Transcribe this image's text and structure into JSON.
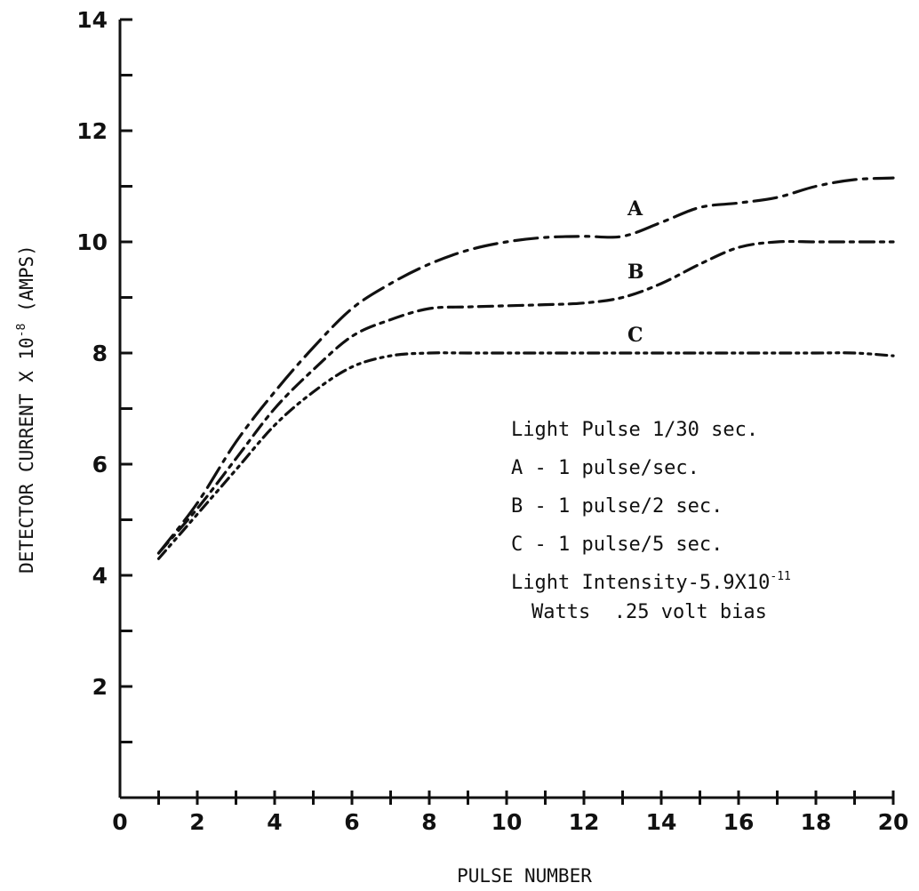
{
  "chart_data": {
    "type": "line",
    "title": "",
    "xlabel": "PULSE NUMBER",
    "ylabel": {
      "prefix": "DETECTOR CURRENT X 10",
      "exponent": "-8",
      "suffix": " (AMPS)"
    },
    "xlim": [
      0,
      20
    ],
    "ylim": [
      0,
      14
    ],
    "x_ticks": [
      "0",
      "2",
      "4",
      "6",
      "8",
      "10",
      "12",
      "14",
      "16",
      "18",
      "20"
    ],
    "y_ticks": [
      "2",
      "4",
      "6",
      "8",
      "10",
      "12",
      "14"
    ],
    "grid": false,
    "series": [
      {
        "name": "A",
        "x": [
          1,
          2,
          3,
          4,
          5,
          6,
          7,
          8,
          9,
          10,
          11,
          12,
          13,
          14,
          15,
          16,
          17,
          18,
          19,
          20
        ],
        "values": [
          4.4,
          5.3,
          6.4,
          7.3,
          8.1,
          8.8,
          9.25,
          9.6,
          9.85,
          10.0,
          10.08,
          10.1,
          10.1,
          10.35,
          10.62,
          10.7,
          10.8,
          11.0,
          11.12,
          11.15
        ]
      },
      {
        "name": "B",
        "x": [
          1,
          2,
          3,
          4,
          5,
          6,
          7,
          8,
          9,
          10,
          11,
          12,
          13,
          14,
          15,
          16,
          17,
          18,
          19,
          20
        ],
        "values": [
          4.4,
          5.2,
          6.1,
          7.0,
          7.7,
          8.3,
          8.6,
          8.8,
          8.83,
          8.85,
          8.87,
          8.9,
          9.0,
          9.25,
          9.6,
          9.9,
          10.0,
          10.0,
          10.0,
          10.0
        ]
      },
      {
        "name": "C",
        "x": [
          1,
          2,
          3,
          4,
          5,
          6,
          7,
          8,
          9,
          10,
          11,
          12,
          13,
          14,
          15,
          16,
          17,
          18,
          19,
          20
        ],
        "values": [
          4.3,
          5.1,
          5.9,
          6.7,
          7.3,
          7.75,
          7.95,
          8.0,
          8.0,
          8.0,
          8.0,
          8.0,
          8.0,
          8.0,
          8.0,
          8.0,
          8.0,
          8.0,
          8.0,
          7.95
        ]
      }
    ],
    "annotations": {
      "line1": "Light Pulse 1/30 sec.",
      "line2": "A - 1 pulse/sec.",
      "line3": "B - 1 pulse/2 sec.",
      "line4": "C - 1 pulse/5 sec.",
      "line5_prefix": "Light Intensity-5.9X10",
      "line5_exponent": "-11",
      "line6": "Watts  .25 volt bias"
    },
    "series_styles": {
      "A": "long-dash-dot",
      "B": "dash-dot",
      "C": "dash-dot-dot"
    },
    "line_color": "#111111"
  }
}
